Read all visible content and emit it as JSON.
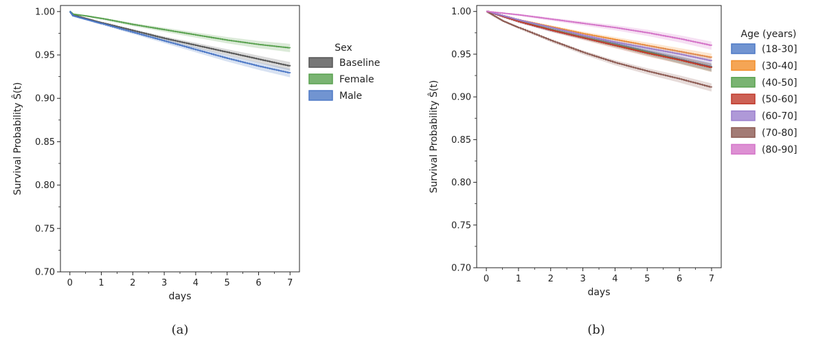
{
  "chart_data": [
    {
      "type": "line",
      "caption": "(a)",
      "xlabel": "days",
      "ylabel": "Survival Probability Ŝ(t)",
      "xlim": [
        -0.3,
        7.3
      ],
      "ylim": [
        0.7,
        1.007
      ],
      "xticks": [
        0,
        1,
        2,
        3,
        4,
        5,
        6,
        7
      ],
      "yticks": [
        0.7,
        0.75,
        0.8,
        0.85,
        0.9,
        0.95,
        1.0
      ],
      "ytick_labels": [
        "0.70",
        "0.75",
        "0.80",
        "0.85",
        "0.90",
        "0.95",
        "1.00"
      ],
      "grid": false,
      "legend": {
        "title": "Sex",
        "placement": "outside-right"
      },
      "series": [
        {
          "name": "Baseline",
          "color": "#555555",
          "x": [
            0,
            0.1,
            0.5,
            1,
            2,
            3,
            4,
            5,
            6,
            7
          ],
          "y": [
            1.0,
            0.996,
            0.992,
            0.987,
            0.978,
            0.969,
            0.961,
            0.953,
            0.945,
            0.937
          ]
        },
        {
          "name": "Female",
          "color": "#59a14f",
          "x": [
            0,
            0.1,
            0.5,
            1,
            2,
            3,
            4,
            5,
            6,
            7
          ],
          "y": [
            1.0,
            0.997,
            0.995,
            0.992,
            0.985,
            0.979,
            0.973,
            0.967,
            0.962,
            0.958
          ]
        },
        {
          "name": "Male",
          "color": "#4e79c6",
          "x": [
            0,
            0.1,
            0.5,
            1,
            2,
            3,
            4,
            5,
            6,
            7
          ],
          "y": [
            1.0,
            0.995,
            0.991,
            0.986,
            0.976,
            0.966,
            0.956,
            0.946,
            0.937,
            0.929
          ]
        }
      ]
    },
    {
      "type": "line",
      "caption": "(b)",
      "xlabel": "days",
      "ylabel": "Survival Probability Ŝ(t)",
      "xlim": [
        -0.3,
        7.3
      ],
      "ylim": [
        0.7,
        1.007
      ],
      "xticks": [
        0,
        1,
        2,
        3,
        4,
        5,
        6,
        7
      ],
      "yticks": [
        0.7,
        0.75,
        0.8,
        0.85,
        0.9,
        0.95,
        1.0
      ],
      "ytick_labels": [
        "0.70",
        "0.75",
        "0.80",
        "0.85",
        "0.90",
        "0.95",
        "1.00"
      ],
      "grid": false,
      "legend": {
        "title": "Age (years)",
        "placement": "outside-right"
      },
      "series": [
        {
          "name": "(18-30]",
          "color": "#4e79c6",
          "x": [
            0,
            1,
            2,
            3,
            4,
            5,
            6,
            7
          ],
          "y": [
            1.0,
            0.988,
            0.978,
            0.97,
            0.962,
            0.953,
            0.944,
            0.935
          ]
        },
        {
          "name": "(30-40]",
          "color": "#f28e2b",
          "x": [
            0,
            1,
            2,
            3,
            4,
            5,
            6,
            7
          ],
          "y": [
            1.0,
            0.99,
            0.982,
            0.974,
            0.967,
            0.96,
            0.953,
            0.946
          ]
        },
        {
          "name": "(40-50]",
          "color": "#59a14f",
          "x": [
            0,
            1,
            2,
            3,
            4,
            5,
            6,
            7
          ],
          "y": [
            1.0,
            0.989,
            0.979,
            0.97,
            0.961,
            0.952,
            0.943,
            0.934
          ]
        },
        {
          "name": "(50-60]",
          "color": "#c0392b",
          "x": [
            0,
            1,
            2,
            3,
            4,
            5,
            6,
            7
          ],
          "y": [
            1.0,
            0.988,
            0.978,
            0.969,
            0.96,
            0.951,
            0.943,
            0.934
          ]
        },
        {
          "name": "(60-70]",
          "color": "#9b7fce",
          "x": [
            0,
            1,
            2,
            3,
            4,
            5,
            6,
            7
          ],
          "y": [
            1.0,
            0.99,
            0.981,
            0.972,
            0.964,
            0.957,
            0.95,
            0.942
          ]
        },
        {
          "name": "(70-80]",
          "color": "#8c5a52",
          "x": [
            0,
            0.5,
            1,
            2,
            3,
            4,
            5,
            6,
            7
          ],
          "y": [
            1.0,
            0.989,
            0.981,
            0.966,
            0.952,
            0.94,
            0.93,
            0.921,
            0.911
          ]
        },
        {
          "name": "(80-90]",
          "color": "#d474c8",
          "x": [
            0,
            1,
            2,
            3,
            4,
            5,
            6,
            7
          ],
          "y": [
            1.0,
            0.996,
            0.991,
            0.986,
            0.981,
            0.975,
            0.968,
            0.96
          ]
        }
      ]
    }
  ]
}
